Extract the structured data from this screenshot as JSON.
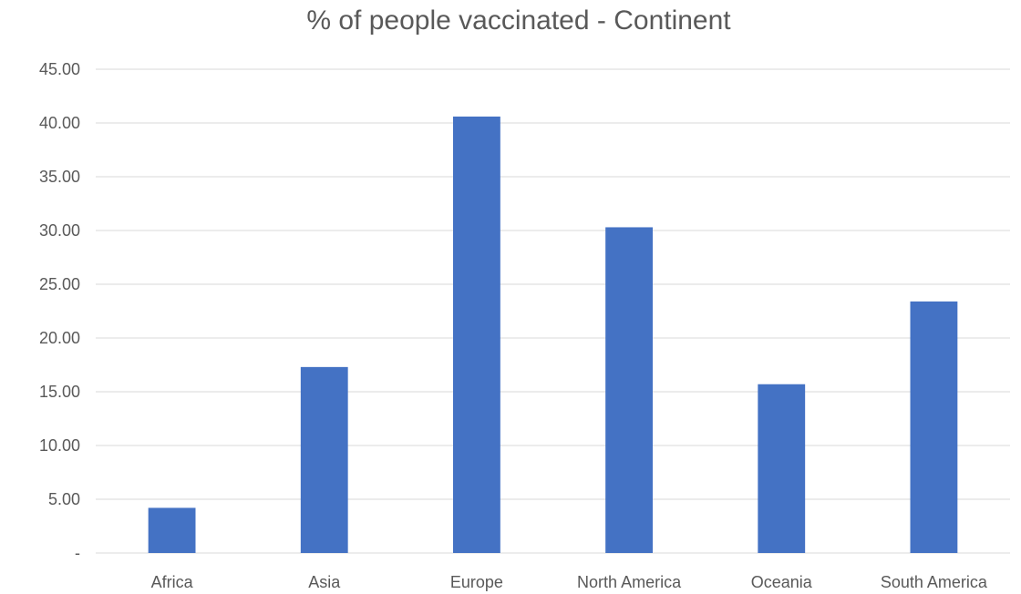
{
  "chart_data": {
    "type": "bar",
    "title": "% of people vaccinated - Continent",
    "xlabel": "",
    "ylabel": "",
    "categories": [
      "Africa",
      "Asia",
      "Europe",
      "North America",
      "Oceania",
      "South America"
    ],
    "values": [
      4.2,
      17.3,
      40.6,
      30.3,
      15.7,
      23.4
    ],
    "ylim": [
      0,
      45
    ],
    "y_ticks": [
      0,
      5,
      10,
      15,
      20,
      25,
      30,
      35,
      40,
      45
    ],
    "y_tick_labels": [
      "-",
      "5.00",
      "10.00",
      "15.00",
      "20.00",
      "25.00",
      "30.00",
      "35.00",
      "40.00",
      "45.00"
    ],
    "grid": true,
    "legend": "none",
    "bar_color": "#4472c4"
  }
}
